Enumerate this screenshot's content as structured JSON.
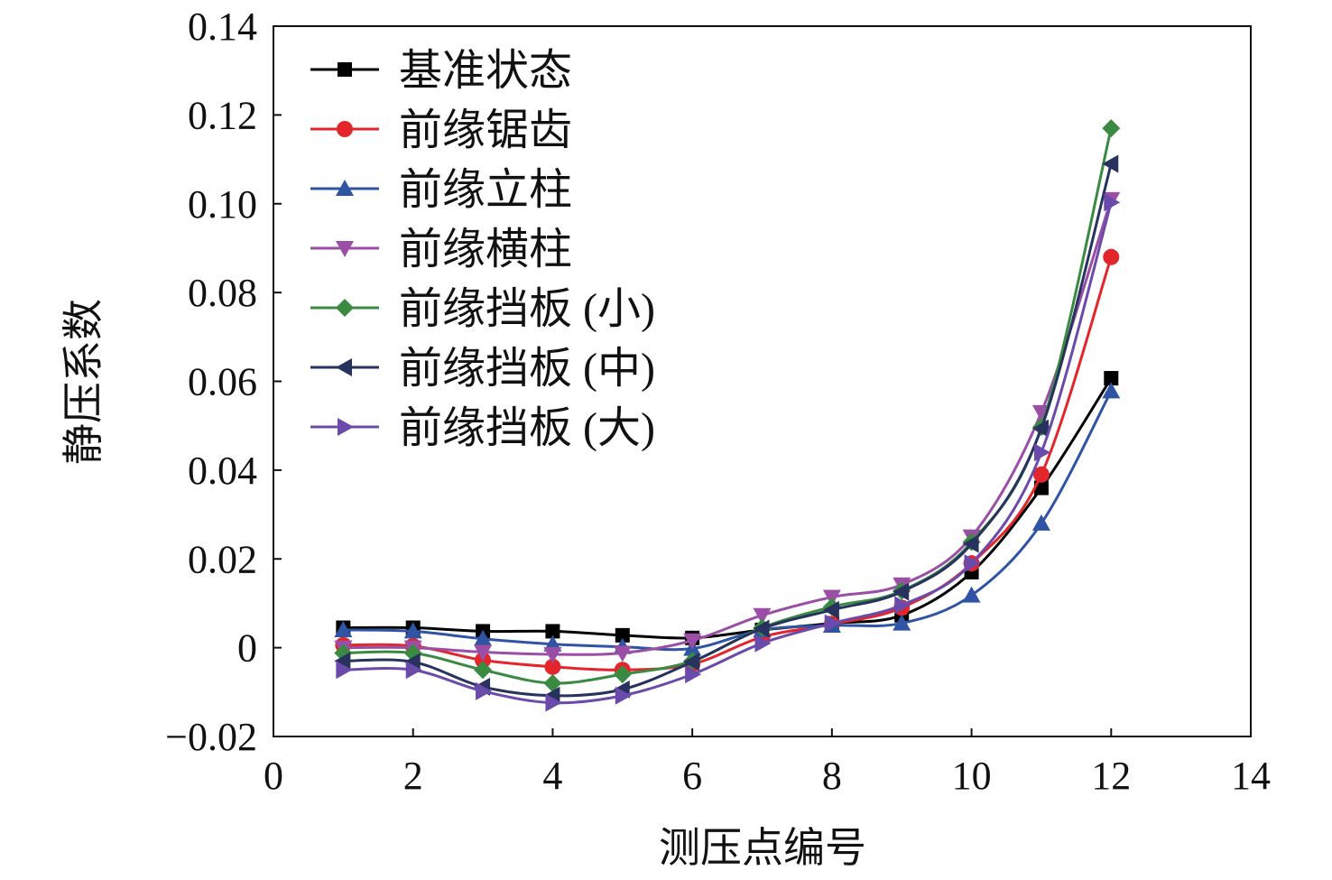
{
  "chart_data": {
    "type": "line",
    "title": "",
    "xlabel": "测压点编号",
    "ylabel": "静压系数",
    "xlim": [
      0,
      14
    ],
    "ylim": [
      -0.02,
      0.14
    ],
    "xticks": [
      0,
      2,
      4,
      6,
      8,
      10,
      12,
      14
    ],
    "xtick_labels": [
      "0",
      "2",
      "4",
      "6",
      "8",
      "10",
      "12",
      "14"
    ],
    "yticks": [
      -0.02,
      0,
      0.02,
      0.04,
      0.06,
      0.08,
      0.1,
      0.12,
      0.14
    ],
    "ytick_labels": [
      "−0.02",
      "0",
      "0.02",
      "0.04",
      "0.06",
      "0.08",
      "0.10",
      "0.12",
      "0.14"
    ],
    "grid": false,
    "legend_position": "top-left",
    "x": [
      1,
      2,
      3,
      4,
      5,
      6,
      7,
      8,
      9,
      10,
      11,
      12
    ],
    "series": [
      {
        "name": "基准状态",
        "color": "#000000",
        "marker": "square",
        "values": [
          0.0045,
          0.0045,
          0.0037,
          0.0037,
          0.0028,
          0.0022,
          0.004,
          0.0055,
          0.0073,
          0.017,
          0.036,
          0.0607
        ]
      },
      {
        "name": "前缘锯齿",
        "color": "#e3262b",
        "marker": "circle",
        "values": [
          0.0006,
          0.0004,
          -0.0028,
          -0.0043,
          -0.005,
          -0.0037,
          0.0024,
          0.0053,
          0.009,
          0.019,
          0.039,
          0.088
        ]
      },
      {
        "name": "前缘立柱",
        "color": "#2f54a3",
        "marker": "triangle-up",
        "values": [
          0.004,
          0.0037,
          0.002,
          0.0008,
          0.0002,
          -0.0002,
          0.004,
          0.005,
          0.0055,
          0.0118,
          0.028,
          0.0578
        ]
      },
      {
        "name": "前缘横柱",
        "color": "#9a4ea6",
        "marker": "triangle-down",
        "values": [
          0.0,
          0.0,
          -0.001,
          -0.0015,
          -0.0012,
          0.0016,
          0.0073,
          0.0114,
          0.0142,
          0.025,
          0.053,
          0.101
        ]
      },
      {
        "name": "前缘挡板 (小)",
        "color": "#3a8a42",
        "marker": "diamond",
        "values": [
          -0.0012,
          -0.0012,
          -0.005,
          -0.008,
          -0.006,
          -0.003,
          0.0045,
          0.0092,
          0.0128,
          0.0238,
          0.0497,
          0.117
        ]
      },
      {
        "name": "前缘挡板 (中)",
        "color": "#27325e",
        "marker": "triangle-left",
        "values": [
          -0.003,
          -0.0032,
          -0.0088,
          -0.0108,
          -0.0094,
          -0.0032,
          0.0043,
          0.0085,
          0.0126,
          0.0234,
          0.0494,
          0.109
        ]
      },
      {
        "name": "前缘挡板 (大)",
        "color": "#6a4bab",
        "marker": "triangle-right",
        "values": [
          -0.005,
          -0.005,
          -0.0098,
          -0.0124,
          -0.0108,
          -0.006,
          0.001,
          0.0055,
          0.0096,
          0.019,
          0.044,
          0.1003
        ]
      }
    ]
  }
}
